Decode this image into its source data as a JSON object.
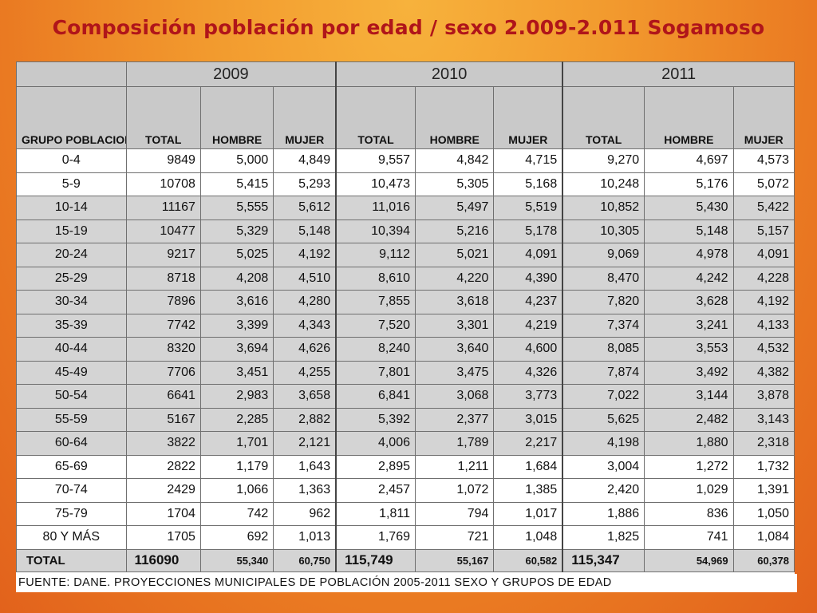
{
  "title": "Composición población por edad / sexo 2.009-2.011 Sogamoso",
  "table": {
    "group_header": "GRUPO POBLACIONAL",
    "years": [
      "2009",
      "2010",
      "2011"
    ],
    "sub_headers": [
      "TOTAL",
      "HOMBRE",
      "MUJER"
    ],
    "rows": [
      {
        "group": "0-4",
        "shaded": false,
        "values": [
          "9849",
          "5,000",
          "4,849",
          "9,557",
          "4,842",
          "4,715",
          "9,270",
          "4,697",
          "4,573"
        ]
      },
      {
        "group": "5-9",
        "shaded": false,
        "values": [
          "10708",
          "5,415",
          "5,293",
          "10,473",
          "5,305",
          "5,168",
          "10,248",
          "5,176",
          "5,072"
        ]
      },
      {
        "group": "10-14",
        "shaded": true,
        "values": [
          "11167",
          "5,555",
          "5,612",
          "11,016",
          "5,497",
          "5,519",
          "10,852",
          "5,430",
          "5,422"
        ]
      },
      {
        "group": "15-19",
        "shaded": true,
        "values": [
          "10477",
          "5,329",
          "5,148",
          "10,394",
          "5,216",
          "5,178",
          "10,305",
          "5,148",
          "5,157"
        ]
      },
      {
        "group": "20-24",
        "shaded": true,
        "values": [
          "9217",
          "5,025",
          "4,192",
          "9,112",
          "5,021",
          "4,091",
          "9,069",
          "4,978",
          "4,091"
        ]
      },
      {
        "group": "25-29",
        "shaded": true,
        "values": [
          "8718",
          "4,208",
          "4,510",
          "8,610",
          "4,220",
          "4,390",
          "8,470",
          "4,242",
          "4,228"
        ]
      },
      {
        "group": "30-34",
        "shaded": true,
        "values": [
          "7896",
          "3,616",
          "4,280",
          "7,855",
          "3,618",
          "4,237",
          "7,820",
          "3,628",
          "4,192"
        ]
      },
      {
        "group": "35-39",
        "shaded": true,
        "values": [
          "7742",
          "3,399",
          "4,343",
          "7,520",
          "3,301",
          "4,219",
          "7,374",
          "3,241",
          "4,133"
        ]
      },
      {
        "group": "40-44",
        "shaded": true,
        "values": [
          "8320",
          "3,694",
          "4,626",
          "8,240",
          "3,640",
          "4,600",
          "8,085",
          "3,553",
          "4,532"
        ]
      },
      {
        "group": "45-49",
        "shaded": true,
        "values": [
          "7706",
          "3,451",
          "4,255",
          "7,801",
          "3,475",
          "4,326",
          "7,874",
          "3,492",
          "4,382"
        ]
      },
      {
        "group": "50-54",
        "shaded": true,
        "values": [
          "6641",
          "2,983",
          "3,658",
          "6,841",
          "3,068",
          "3,773",
          "7,022",
          "3,144",
          "3,878"
        ]
      },
      {
        "group": "55-59",
        "shaded": true,
        "values": [
          "5167",
          "2,285",
          "2,882",
          "5,392",
          "2,377",
          "3,015",
          "5,625",
          "2,482",
          "3,143"
        ]
      },
      {
        "group": "60-64",
        "shaded": true,
        "values": [
          "3822",
          "1,701",
          "2,121",
          "4,006",
          "1,789",
          "2,217",
          "4,198",
          "1,880",
          "2,318"
        ]
      },
      {
        "group": "65-69",
        "shaded": false,
        "values": [
          "2822",
          "1,179",
          "1,643",
          "2,895",
          "1,211",
          "1,684",
          "3,004",
          "1,272",
          "1,732"
        ]
      },
      {
        "group": "70-74",
        "shaded": false,
        "values": [
          "2429",
          "1,066",
          "1,363",
          "2,457",
          "1,072",
          "1,385",
          "2,420",
          "1,029",
          "1,391"
        ]
      },
      {
        "group": "75-79",
        "shaded": false,
        "values": [
          "1704",
          "742",
          "962",
          "1,811",
          "794",
          "1,017",
          "1,886",
          "836",
          "1,050"
        ]
      },
      {
        "group": "80 Y MÁS",
        "shaded": false,
        "values": [
          "1705",
          "692",
          "1,013",
          "1,769",
          "721",
          "1,048",
          "1,825",
          "741",
          "1,084"
        ]
      }
    ],
    "total": {
      "label": "TOTAL",
      "values": [
        "116090",
        "55,340",
        "60,750",
        "115,749",
        "55,167",
        "60,582",
        "115,347",
        "54,969",
        "60,378"
      ]
    }
  },
  "source": "FUENTE: DANE. PROYECCIONES MUNICIPALES DE POBLACIÓN 2005-2011 SEXO Y GRUPOS DE EDAD"
}
